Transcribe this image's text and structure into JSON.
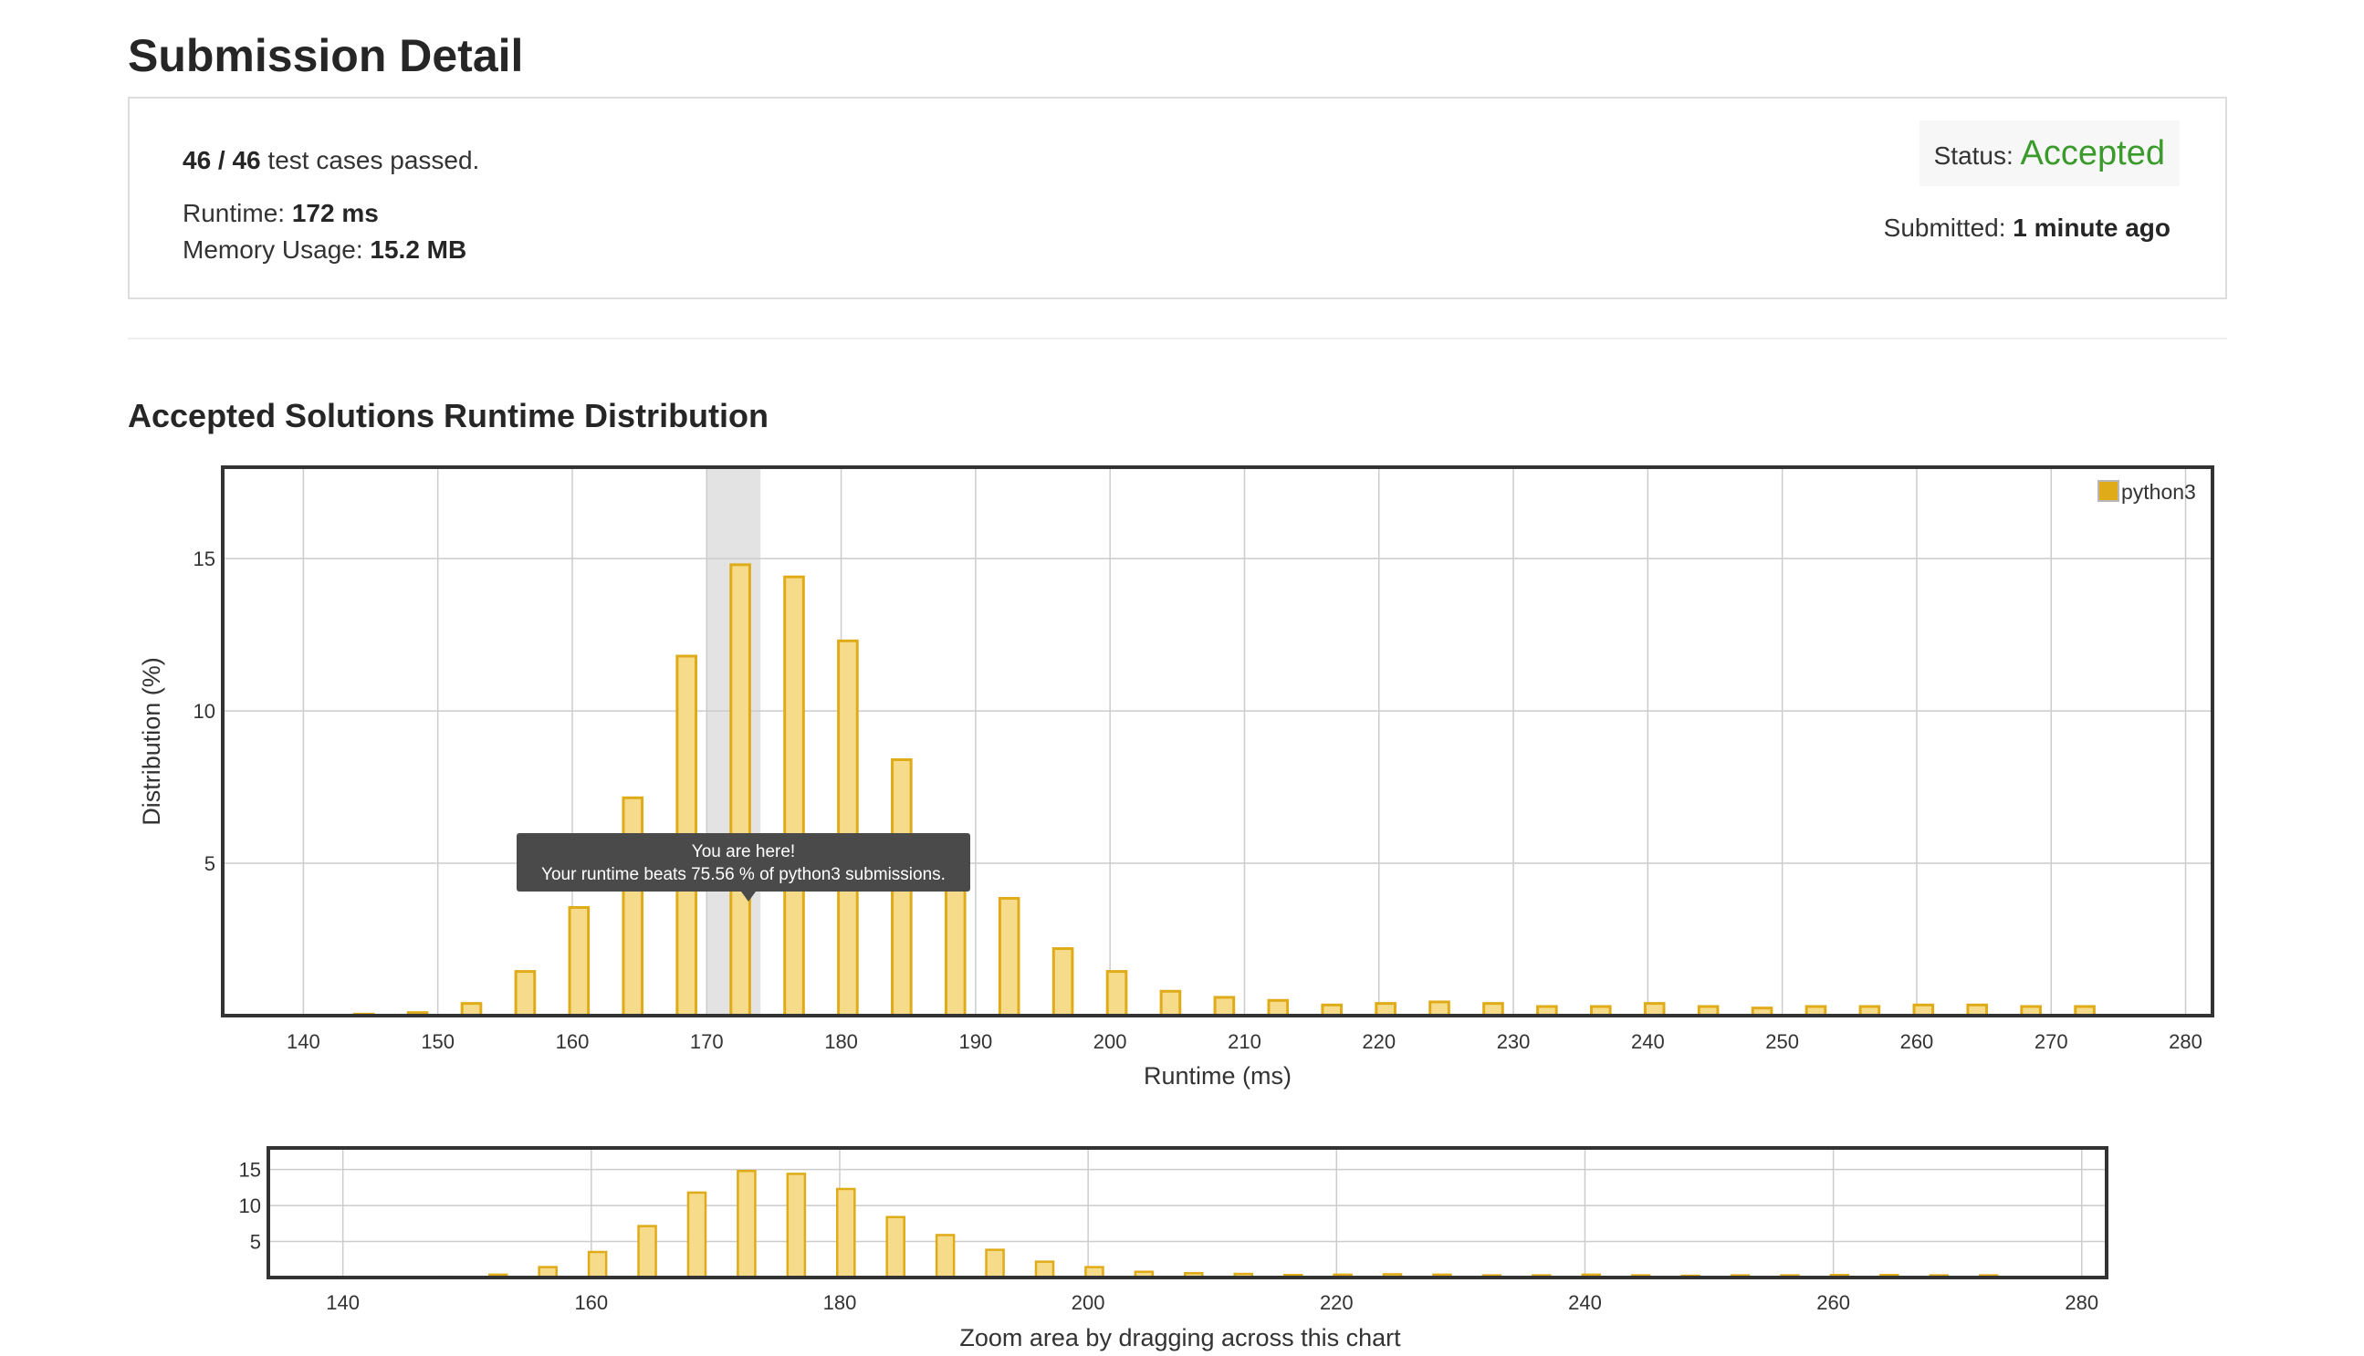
{
  "page": {
    "title": "Submission Detail"
  },
  "summary": {
    "tests_passed": "46 / 46",
    "tests_suffix": " test cases passed.",
    "runtime_label": "Runtime: ",
    "runtime_value": "172 ms",
    "memory_label": "Memory Usage: ",
    "memory_value": "15.2 MB",
    "status_label": "Status: ",
    "status_value": "Accepted",
    "submitted_label": "Submitted: ",
    "submitted_value": "1 minute ago"
  },
  "colors": {
    "bar_fill": "#f6dc8a",
    "bar_stroke": "#e0ab19",
    "legend_fill": "#e0ab19",
    "status_accepted": "#3b9a2c",
    "highlight_band": "#e3e3e3",
    "tooltip_bg": "#4a4a4a",
    "grid": "#cccccc",
    "frame": "#333333"
  },
  "section": {
    "title": "Accepted Solutions Runtime Distribution"
  },
  "chart_data": [
    {
      "type": "bar",
      "role": "main",
      "xlabel": "Runtime (ms)",
      "ylabel": "Distribution (%)",
      "xlim": [
        134,
        282
      ],
      "ylim": [
        0,
        18
      ],
      "x_ticks": [
        140,
        150,
        160,
        170,
        180,
        190,
        200,
        210,
        220,
        230,
        240,
        250,
        260,
        270,
        280
      ],
      "y_ticks": [
        5,
        10,
        15
      ],
      "grid": true,
      "legend": {
        "entries": [
          "python3"
        ],
        "position": "top-right"
      },
      "series": [
        {
          "name": "python3",
          "x": [
            144.5,
            148.5,
            152.5,
            156.5,
            160.5,
            164.5,
            168.5,
            172.5,
            176.5,
            180.5,
            184.5,
            188.5,
            192.5,
            196.5,
            200.5,
            204.5,
            208.5,
            212.5,
            216.5,
            220.5,
            224.5,
            228.5,
            232.5,
            236.5,
            240.5,
            244.5,
            248.5,
            252.5,
            256.5,
            260.5,
            264.5,
            268.5,
            272.5
          ],
          "values": [
            0.05,
            0.1,
            0.4,
            1.45,
            3.55,
            7.15,
            11.8,
            14.8,
            14.4,
            12.3,
            8.4,
            5.9,
            3.85,
            2.2,
            1.45,
            0.8,
            0.6,
            0.5,
            0.35,
            0.4,
            0.45,
            0.4,
            0.3,
            0.3,
            0.4,
            0.3,
            0.25,
            0.3,
            0.3,
            0.35,
            0.35,
            0.3,
            0.3
          ]
        }
      ],
      "highlight": {
        "x_start": 170,
        "x_end": 174
      },
      "tooltip": {
        "title": "You are here!",
        "body": "Your runtime beats 75.56 % of python3 submissions."
      }
    },
    {
      "type": "bar",
      "role": "navigator",
      "xlabel": "Zoom area by dragging across this chart",
      "xlim": [
        134,
        282
      ],
      "ylim": [
        0,
        18
      ],
      "x_ticks": [
        140,
        160,
        180,
        200,
        220,
        240,
        260,
        280
      ],
      "y_ticks": [
        5,
        10,
        15
      ],
      "grid": true
    }
  ]
}
